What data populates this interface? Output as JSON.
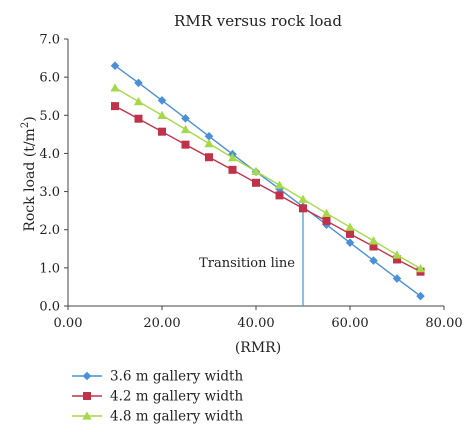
{
  "chart_data": {
    "type": "line",
    "title": "RMR versus rock load",
    "xlabel": "(RMR)",
    "ylabel": "Rock load (t/m²)",
    "ylabel_base": "Rock load (t/m",
    "ylabel_sup": "2",
    "ylabel_close": ")",
    "xlim": [
      0,
      80
    ],
    "ylim": [
      0,
      7
    ],
    "x_ticks": [
      0,
      20,
      40,
      60,
      80
    ],
    "x_tick_labels": [
      "0.00",
      "20.00",
      "40.00",
      "60.00",
      "80.00"
    ],
    "y_ticks": [
      0,
      1,
      2,
      3,
      4,
      5,
      6,
      7
    ],
    "y_tick_labels": [
      "0.0",
      "1.0",
      "2.0",
      "3.0",
      "4.0",
      "5.0",
      "6.0",
      "7.0"
    ],
    "grid": false,
    "legend_position": "bottom-left",
    "series": [
      {
        "name": "3.6 m gallery width",
        "color": "#4a90d9",
        "marker": "diamond",
        "x": [
          10,
          15,
          20,
          25,
          30,
          35,
          40,
          45,
          50,
          55,
          60,
          65,
          70,
          75
        ],
        "y": [
          6.3,
          5.85,
          5.39,
          4.92,
          4.45,
          3.98,
          3.52,
          3.07,
          2.6,
          2.13,
          1.66,
          1.19,
          0.72,
          0.26
        ]
      },
      {
        "name": "4.2 m gallery width",
        "color": "#c0324a",
        "marker": "square",
        "x": [
          10,
          15,
          20,
          25,
          30,
          35,
          40,
          45,
          50,
          55,
          60,
          65,
          70,
          75
        ],
        "y": [
          5.24,
          4.91,
          4.57,
          4.23,
          3.9,
          3.57,
          3.23,
          2.9,
          2.56,
          2.23,
          1.89,
          1.56,
          1.22,
          0.9
        ]
      },
      {
        "name": "4.8 m gallery width",
        "color": "#a6d94a",
        "marker": "triangle",
        "x": [
          10,
          15,
          20,
          25,
          30,
          35,
          40,
          45,
          50,
          55,
          60,
          65,
          70,
          75
        ],
        "y": [
          5.72,
          5.36,
          5.0,
          4.63,
          4.26,
          3.89,
          3.53,
          3.17,
          2.8,
          2.43,
          2.07,
          1.71,
          1.34,
          0.98
        ]
      }
    ],
    "annotations": [
      {
        "text": "Transition line",
        "x": 50
      }
    ]
  }
}
